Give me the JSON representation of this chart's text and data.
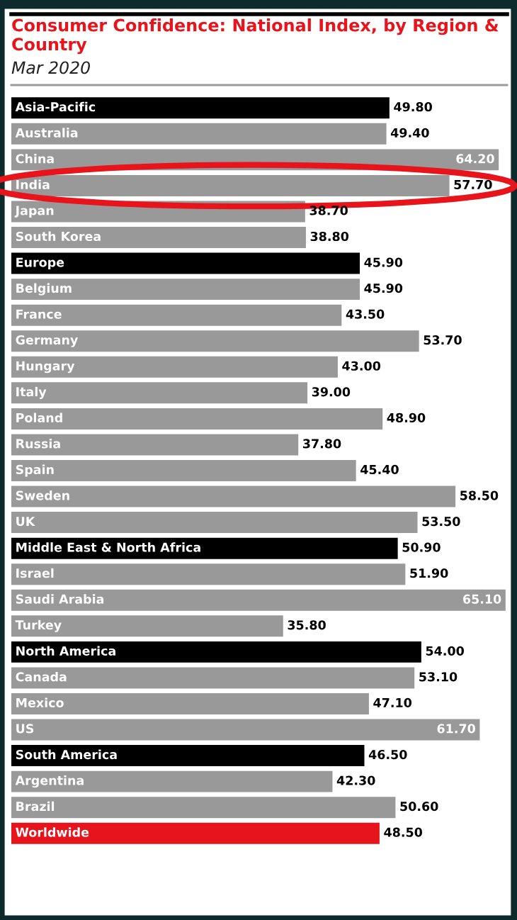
{
  "chart_data": {
    "type": "bar",
    "orientation": "horizontal",
    "title": "Consumer Confidence: National Index, by Region & Country",
    "subtitle": "Mar 2020",
    "categories": [
      "Asia-Pacific",
      "Australia",
      "China",
      "India",
      "Japan",
      "South Korea",
      "Europe",
      "Belgium",
      "France",
      "Germany",
      "Hungary",
      "Italy",
      "Poland",
      "Russia",
      "Spain",
      "Sweden",
      "UK",
      "Middle East & North Africa",
      "Israel",
      "Saudi Arabia",
      "Turkey",
      "North America",
      "Canada",
      "Mexico",
      "US",
      "South America",
      "Argentina",
      "Brazil",
      "Worldwide"
    ],
    "values": [
      49.8,
      49.4,
      64.2,
      57.7,
      38.7,
      38.8,
      45.9,
      45.9,
      43.5,
      53.7,
      43.0,
      39.0,
      48.9,
      37.8,
      45.4,
      58.5,
      53.5,
      50.9,
      51.9,
      65.1,
      35.8,
      54.0,
      53.1,
      47.1,
      61.7,
      46.5,
      42.3,
      50.6,
      48.5
    ],
    "colors": [
      "#000000",
      "#999999",
      "#999999",
      "#999999",
      "#999999",
      "#999999",
      "#000000",
      "#999999",
      "#999999",
      "#999999",
      "#999999",
      "#999999",
      "#999999",
      "#999999",
      "#999999",
      "#999999",
      "#999999",
      "#000000",
      "#999999",
      "#999999",
      "#999999",
      "#000000",
      "#999999",
      "#999999",
      "#999999",
      "#000000",
      "#999999",
      "#999999",
      "#e8141b"
    ],
    "value_labels": [
      "49.80",
      "49.40",
      "64.20",
      "57.70",
      "38.70",
      "38.80",
      "45.90",
      "45.90",
      "43.50",
      "53.70",
      "43.00",
      "39.00",
      "48.90",
      "37.80",
      "45.40",
      "58.50",
      "53.50",
      "50.90",
      "51.90",
      "65.10",
      "35.80",
      "54.00",
      "53.10",
      "47.10",
      "61.70",
      "46.50",
      "42.30",
      "50.60",
      "48.50"
    ],
    "xlim": [
      0,
      65.3
    ],
    "legend": false
  }
}
